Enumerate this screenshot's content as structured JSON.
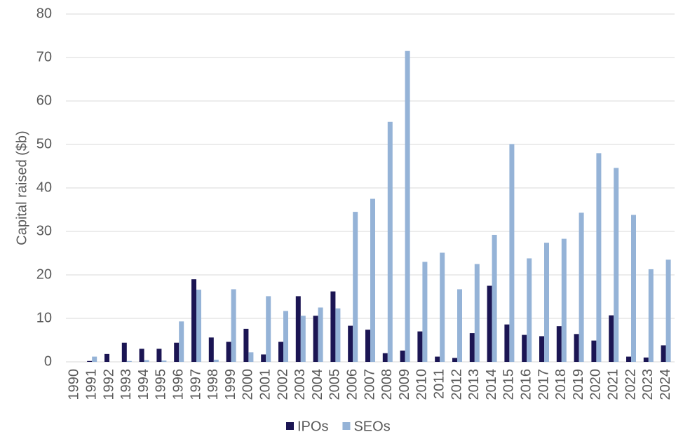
{
  "chart_data": {
    "type": "bar",
    "y_label": "Capital raised ($b)",
    "categories": [
      "1990",
      "1991",
      "1992",
      "1993",
      "1994",
      "1995",
      "1996",
      "1997",
      "1998",
      "1999",
      "2000",
      "2001",
      "2002",
      "2003",
      "2004",
      "2005",
      "2006",
      "2007",
      "2008",
      "2009",
      "2010",
      "2011",
      "2012",
      "2013",
      "2014",
      "2015",
      "2016",
      "2017",
      "2018",
      "2019",
      "2020",
      "2021",
      "2022",
      "2023",
      "2024"
    ],
    "series": [
      {
        "name": "IPOs",
        "color": "#1b1553",
        "values": [
          0,
          0.2,
          1.8,
          4.4,
          3.0,
          3.0,
          4.4,
          19.0,
          5.6,
          4.6,
          7.6,
          1.7,
          4.6,
          15.1,
          10.6,
          16.2,
          8.3,
          7.4,
          2.0,
          2.6,
          7.0,
          1.2,
          0.9,
          6.6,
          17.5,
          8.6,
          6.2,
          5.9,
          8.2,
          6.4,
          4.9,
          10.7,
          1.2,
          1.0,
          3.8
        ]
      },
      {
        "name": "SEOs",
        "color": "#95b3d7",
        "values": [
          0,
          1.2,
          0,
          0.2,
          0.4,
          0.3,
          9.3,
          16.6,
          0.5,
          16.7,
          2.2,
          15.1,
          11.7,
          10.6,
          12.5,
          12.3,
          34.5,
          37.5,
          55.2,
          71.5,
          23.0,
          25.1,
          16.7,
          22.5,
          29.2,
          50.1,
          23.8,
          27.4,
          28.3,
          34.3,
          48.0,
          44.6,
          33.8,
          21.3,
          23.5
        ]
      }
    ],
    "ylim": [
      0,
      80
    ],
    "yticks": [
      0,
      10,
      20,
      30,
      40,
      50,
      60,
      70,
      80
    ],
    "grid": true,
    "legend": "bottom"
  }
}
